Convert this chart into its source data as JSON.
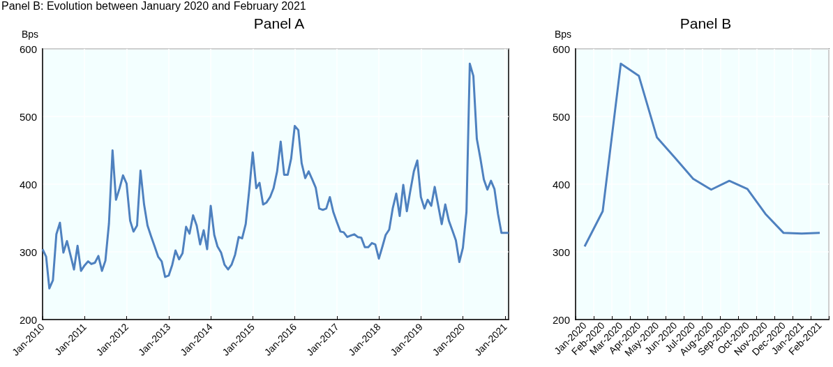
{
  "chart_data": [
    {
      "type": "line",
      "title": "Panel A",
      "ylabel": "Bps",
      "annotations": [
        "Panel B: Evolution between January 2020 and February 2021"
      ],
      "x": [
        "2010-01",
        "2010-02",
        "2010-03",
        "2010-04",
        "2010-05",
        "2010-06",
        "2010-07",
        "2010-08",
        "2010-09",
        "2010-10",
        "2010-11",
        "2010-12",
        "2011-01",
        "2011-02",
        "2011-03",
        "2011-04",
        "2011-05",
        "2011-06",
        "2011-07",
        "2011-08",
        "2011-09",
        "2011-10",
        "2011-11",
        "2011-12",
        "2012-01",
        "2012-02",
        "2012-03",
        "2012-04",
        "2012-05",
        "2012-06",
        "2012-07",
        "2012-08",
        "2012-09",
        "2012-10",
        "2012-11",
        "2012-12",
        "2013-01",
        "2013-02",
        "2013-03",
        "2013-04",
        "2013-05",
        "2013-06",
        "2013-07",
        "2013-08",
        "2013-09",
        "2013-10",
        "2013-11",
        "2013-12",
        "2014-01",
        "2014-02",
        "2014-03",
        "2014-04",
        "2014-05",
        "2014-06",
        "2014-07",
        "2014-08",
        "2014-09",
        "2014-10",
        "2014-11",
        "2014-12",
        "2015-01",
        "2015-02",
        "2015-03",
        "2015-04",
        "2015-05",
        "2015-06",
        "2015-07",
        "2015-08",
        "2015-09",
        "2015-10",
        "2015-11",
        "2015-12",
        "2016-01",
        "2016-02",
        "2016-03",
        "2016-04",
        "2016-05",
        "2016-06",
        "2016-07",
        "2016-08",
        "2016-09",
        "2016-10",
        "2016-11",
        "2016-12",
        "2017-01",
        "2017-02",
        "2017-03",
        "2017-04",
        "2017-05",
        "2017-06",
        "2017-07",
        "2017-08",
        "2017-09",
        "2017-10",
        "2017-11",
        "2017-12",
        "2018-01",
        "2018-02",
        "2018-03",
        "2018-04",
        "2018-05",
        "2018-06",
        "2018-07",
        "2018-08",
        "2018-09",
        "2018-10",
        "2018-11",
        "2018-12",
        "2019-01",
        "2019-02",
        "2019-03",
        "2019-04",
        "2019-05",
        "2019-06",
        "2019-07",
        "2019-08",
        "2019-09",
        "2019-10",
        "2019-11",
        "2019-12",
        "2020-01",
        "2020-02",
        "2020-03",
        "2020-04",
        "2020-05",
        "2020-06",
        "2020-07",
        "2020-08",
        "2020-09",
        "2020-10",
        "2020-11",
        "2020-12",
        "2021-01",
        "2021-02"
      ],
      "series": [
        {
          "color": "#4e81bf",
          "values": [
            304,
            293,
            246,
            258,
            326,
            343,
            299,
            316,
            295,
            274,
            309,
            272,
            280,
            286,
            282,
            284,
            294,
            272,
            287,
            342,
            450,
            377,
            394,
            413,
            401,
            346,
            330,
            339,
            420,
            370,
            339,
            323,
            308,
            293,
            286,
            263,
            265,
            281,
            302,
            289,
            298,
            337,
            327,
            354,
            339,
            311,
            332,
            304,
            368,
            325,
            308,
            299,
            281,
            274,
            281,
            296,
            322,
            320,
            341,
            390,
            447,
            394,
            402,
            370,
            373,
            381,
            394,
            419,
            463,
            414,
            414,
            438,
            486,
            480,
            431,
            409,
            419,
            407,
            395,
            364,
            362,
            364,
            381,
            359,
            344,
            330,
            329,
            322,
            324,
            326,
            322,
            321,
            307,
            307,
            313,
            311,
            290,
            308,
            325,
            333,
            364,
            386,
            353,
            399,
            360,
            390,
            419,
            435,
            381,
            364,
            377,
            368,
            396,
            368,
            341,
            370,
            346,
            332,
            317,
            285,
            306,
            359,
            578,
            560,
            467,
            438,
            407,
            392,
            405,
            393,
            356,
            328,
            328,
            328
          ]
        }
      ],
      "xlim": [
        "2010-01",
        "2021-02"
      ],
      "xticks": [
        {
          "value": "2010-01",
          "label": "Jan-2010"
        },
        {
          "value": "2011-01",
          "label": "Jan-2011"
        },
        {
          "value": "2012-01",
          "label": "Jan-2012"
        },
        {
          "value": "2013-01",
          "label": "Jan-2013"
        },
        {
          "value": "2014-01",
          "label": "Jan-2014"
        },
        {
          "value": "2015-01",
          "label": "Jan-2015"
        },
        {
          "value": "2016-01",
          "label": "Jan-2016"
        },
        {
          "value": "2017-01",
          "label": "Jan-2017"
        },
        {
          "value": "2018-01",
          "label": "Jan-2018"
        },
        {
          "value": "2019-01",
          "label": "Jan-2019"
        },
        {
          "value": "2020-01",
          "label": "Jan-2020"
        },
        {
          "value": "2021-01",
          "label": "Jan-2021"
        }
      ],
      "ylim": [
        200,
        600
      ],
      "yticks": [
        200,
        300,
        400,
        500,
        600
      ],
      "grid": true,
      "marker": "none"
    },
    {
      "type": "line",
      "title": "Panel B",
      "ylabel": "Bps",
      "categories": [
        "Jan-2020",
        "Feb-2020",
        "Mar-2020",
        "Apr-2020",
        "May-2020",
        "Jun-2020",
        "Jul-2020",
        "Aug-2020",
        "Sep-2020",
        "Oct-2020",
        "Nov-2020",
        "Dec-2020",
        "Jan-2021",
        "Feb-2021"
      ],
      "series": [
        {
          "color": "#4e81bf",
          "values": [
            308,
            360,
            578,
            560,
            469,
            439,
            408,
            392,
            405,
            393,
            356,
            328,
            327,
            328
          ]
        }
      ],
      "ylim": [
        200,
        600
      ],
      "yticks": [
        200,
        300,
        400,
        500,
        600
      ],
      "grid": true,
      "marker": "none"
    }
  ]
}
